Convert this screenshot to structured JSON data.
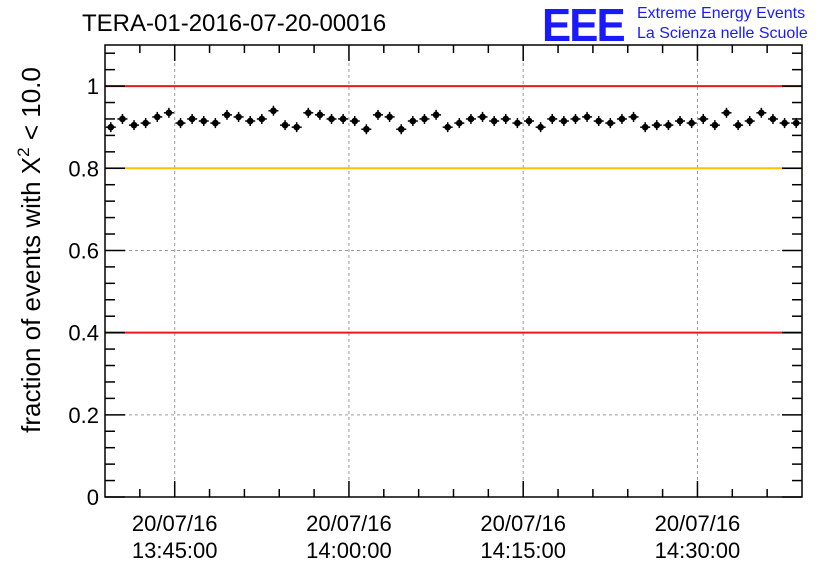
{
  "title": "TERA-01-2016-07-20-00016",
  "logo": {
    "mark": "EEE",
    "line1": "Extreme Energy Events",
    "line2": "La Scienza nelle Scuole"
  },
  "colors": {
    "threshold_red": "#e8191c",
    "threshold_yellow": "#ffc000",
    "points": "#000000",
    "logo_blue": "#1a1aff"
  },
  "chart_data": {
    "type": "scatter",
    "title": "TERA-01-2016-07-20-00016",
    "ylabel": "fraction of events with χ² < 10.0",
    "ylabel_parts": {
      "prefix": "fraction of events with ",
      "symbol": "X",
      "sup": "2",
      "suffix": " < 10.0"
    },
    "xlabel": "",
    "ylim": [
      0,
      1.1
    ],
    "xlim": [
      "2016-07-20 13:39:00",
      "2016-07-20 14:39:00"
    ],
    "grid": true,
    "y_ticks": [
      0,
      0.2,
      0.4,
      0.6,
      0.8,
      1
    ],
    "y_tick_labels": [
      "0",
      "0.2",
      "0.4",
      "0.6",
      "0.8",
      "1"
    ],
    "x_ticks": [
      "2016-07-20 13:45:00",
      "2016-07-20 14:00:00",
      "2016-07-20 14:15:00",
      "2016-07-20 14:30:00"
    ],
    "x_tick_labels": [
      {
        "date": "20/07/16",
        "time": "13:45:00"
      },
      {
        "date": "20/07/16",
        "time": "14:00:00"
      },
      {
        "date": "20/07/16",
        "time": "14:15:00"
      },
      {
        "date": "20/07/16",
        "time": "14:30:00"
      }
    ],
    "reference_lines": [
      {
        "y": 1.0,
        "color": "#e8191c"
      },
      {
        "y": 0.8,
        "color": "#ffc000"
      },
      {
        "y": 0.4,
        "color": "#e8191c"
      }
    ],
    "series": [
      {
        "x": [
          "13:39:30",
          "13:40:30",
          "13:41:30",
          "13:42:30",
          "13:43:30",
          "13:44:30",
          "13:45:30",
          "13:46:30",
          "13:47:30",
          "13:48:30",
          "13:49:30",
          "13:50:30",
          "13:51:30",
          "13:52:30",
          "13:53:30",
          "13:54:30",
          "13:55:30",
          "13:56:30",
          "13:57:30",
          "13:58:30",
          "13:59:30",
          "14:00:30",
          "14:01:30",
          "14:02:30",
          "14:03:30",
          "14:04:30",
          "14:05:30",
          "14:06:30",
          "14:07:30",
          "14:08:30",
          "14:09:30",
          "14:10:30",
          "14:11:30",
          "14:12:30",
          "14:13:30",
          "14:14:30",
          "14:15:30",
          "14:16:30",
          "14:17:30",
          "14:18:30",
          "14:19:30",
          "14:20:30",
          "14:21:30",
          "14:22:30",
          "14:23:30",
          "14:24:30",
          "14:25:30",
          "14:26:30",
          "14:27:30",
          "14:28:30",
          "14:29:30",
          "14:30:30",
          "14:31:30",
          "14:32:30",
          "14:33:30",
          "14:34:30",
          "14:35:30",
          "14:36:30",
          "14:37:30",
          "14:38:30"
        ],
        "y": [
          0.9,
          0.92,
          0.905,
          0.91,
          0.925,
          0.935,
          0.91,
          0.92,
          0.915,
          0.91,
          0.93,
          0.925,
          0.915,
          0.92,
          0.94,
          0.905,
          0.9,
          0.935,
          0.93,
          0.92,
          0.92,
          0.915,
          0.895,
          0.93,
          0.925,
          0.895,
          0.915,
          0.92,
          0.93,
          0.9,
          0.91,
          0.92,
          0.925,
          0.915,
          0.92,
          0.91,
          0.915,
          0.9,
          0.92,
          0.915,
          0.92,
          0.925,
          0.915,
          0.91,
          0.92,
          0.925,
          0.9,
          0.905,
          0.905,
          0.915,
          0.91,
          0.92,
          0.905,
          0.935,
          0.905,
          0.915,
          0.935,
          0.92,
          0.91,
          0.91
        ]
      }
    ]
  }
}
